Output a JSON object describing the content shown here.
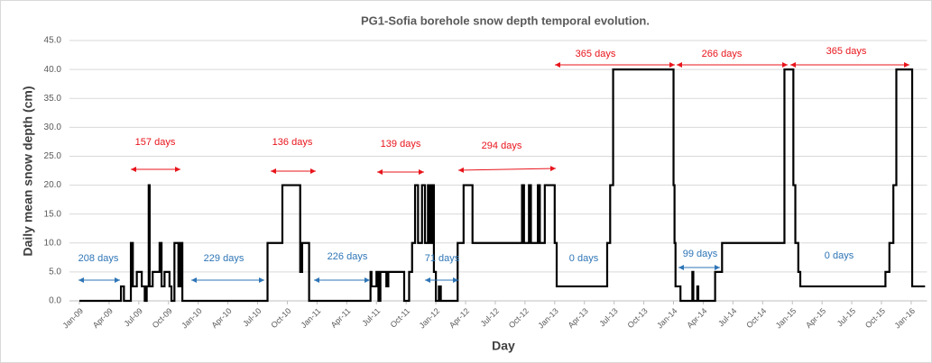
{
  "chart_data": {
    "type": "line",
    "title": "PG1-Sofia borehole snow depth temporal evolution.",
    "xlabel": "Day",
    "ylabel": "Daily mean snow depth (cm)",
    "xlim": [
      -1,
      85.6
    ],
    "ylim": [
      0,
      45
    ],
    "grid": true,
    "xticks": [
      {
        "value": 0,
        "label": "Jan-09"
      },
      {
        "value": 3,
        "label": "Apr-09"
      },
      {
        "value": 6,
        "label": "Jul-09"
      },
      {
        "value": 9,
        "label": "Oct-09"
      },
      {
        "value": 12,
        "label": "Jan-10"
      },
      {
        "value": 15,
        "label": "Apr-10"
      },
      {
        "value": 18,
        "label": "Jul-10"
      },
      {
        "value": 21,
        "label": "Oct-10"
      },
      {
        "value": 24,
        "label": "Jan-11"
      },
      {
        "value": 27,
        "label": "Apr-11"
      },
      {
        "value": 30,
        "label": "Jul-11"
      },
      {
        "value": 33,
        "label": "Oct-11"
      },
      {
        "value": 36,
        "label": "Jan-12"
      },
      {
        "value": 39,
        "label": "Apr-12"
      },
      {
        "value": 42,
        "label": "Jul-12"
      },
      {
        "value": 45,
        "label": "Oct-12"
      },
      {
        "value": 48,
        "label": "Jan-13"
      },
      {
        "value": 51,
        "label": "Apr-13"
      },
      {
        "value": 54,
        "label": "Jul-13"
      },
      {
        "value": 57,
        "label": "Oct-13"
      },
      {
        "value": 60,
        "label": "Jan-14"
      },
      {
        "value": 63,
        "label": "Apr-14"
      },
      {
        "value": 66,
        "label": "Jul-14"
      },
      {
        "value": 69,
        "label": "Oct-14"
      },
      {
        "value": 72,
        "label": "Jan-15"
      },
      {
        "value": 75,
        "label": "Apr-15"
      },
      {
        "value": 78,
        "label": "Jul-15"
      },
      {
        "value": 81,
        "label": "Oct-15"
      },
      {
        "value": 84,
        "label": "Jan-16"
      }
    ],
    "yticks": [
      {
        "value": 0,
        "label": "0.0"
      },
      {
        "value": 5,
        "label": "5.0"
      },
      {
        "value": 10,
        "label": "10.0"
      },
      {
        "value": 15,
        "label": "15.0"
      },
      {
        "value": 20,
        "label": "20.0"
      },
      {
        "value": 25,
        "label": "25.0"
      },
      {
        "value": 30,
        "label": "30.0"
      },
      {
        "value": 35,
        "label": "35.0"
      },
      {
        "value": 40,
        "label": "40.0"
      },
      {
        "value": 45,
        "label": "45.0"
      }
    ],
    "series": [
      {
        "color": "#000000",
        "x": [
          0,
          4.2,
          4.2,
          4.5,
          4.5,
          5.2,
          5.2,
          5.4,
          5.4,
          5.8,
          5.8,
          6.3,
          6.3,
          6.6,
          6.6,
          6.8,
          6.8,
          7.0,
          7.0,
          7.1,
          7.1,
          7.4,
          7.4,
          8.1,
          8.1,
          8.3,
          8.3,
          8.6,
          8.6,
          9.1,
          9.1,
          9.3,
          9.3,
          9.6,
          9.6,
          10.0,
          10.0,
          10.2,
          10.2,
          10.4,
          10.4,
          19.0,
          19.0,
          20.5,
          20.5,
          22.3,
          22.3,
          22.5,
          22.5,
          23.2,
          23.2,
          29.4,
          29.4,
          29.5,
          29.5,
          30.0,
          30.0,
          30.2,
          30.2,
          30.4,
          30.4,
          31.0,
          31.0,
          31.2,
          31.2,
          32.8,
          32.8,
          33.3,
          33.3,
          33.6,
          33.6,
          33.9,
          33.9,
          34.2,
          34.2,
          34.6,
          34.6,
          34.9,
          34.9,
          35.2,
          35.2,
          35.4,
          35.4,
          35.6,
          35.6,
          35.8,
          35.8,
          36.0,
          36.0,
          36.3,
          36.3,
          36.5,
          36.5,
          38.2,
          38.2,
          38.8,
          38.8,
          39.7,
          39.7,
          44.7,
          44.7,
          44.9,
          44.9,
          45.4,
          45.4,
          45.6,
          45.6,
          46.3,
          46.3,
          46.5,
          46.5,
          47.0,
          47.0,
          48.0,
          48.0,
          48.2,
          48.2,
          53.3,
          53.3,
          53.6,
          53.6,
          53.9,
          53.9,
          60.0,
          60.0,
          60.1,
          60.1,
          60.2,
          60.2,
          60.7,
          60.7,
          61.9,
          61.9,
          62.0,
          62.0,
          62.4,
          62.4,
          62.5,
          62.5,
          64.2,
          64.2,
          64.9,
          64.9,
          71.2,
          71.2,
          72.1,
          72.1,
          72.3,
          72.3,
          72.6,
          72.6,
          72.8,
          72.8,
          81.4,
          81.4,
          81.8,
          81.8,
          82.2,
          82.2,
          82.5,
          82.5,
          84.1,
          84.1,
          85.4
        ],
        "values": [
          0,
          0,
          2.5,
          2.5,
          0,
          0,
          10,
          10,
          2.5,
          2.5,
          5,
          5,
          2.5,
          2.5,
          0,
          0,
          2.5,
          2.5,
          20,
          20,
          2.5,
          2.5,
          5,
          5,
          10,
          10,
          2.5,
          2.5,
          5,
          5,
          2.5,
          2.5,
          0,
          0,
          10,
          10,
          2.5,
          2.5,
          10,
          10,
          0,
          0,
          10,
          10,
          20,
          20,
          5,
          5,
          10,
          10,
          0,
          0,
          5,
          5,
          2.5,
          2.5,
          5,
          5,
          0,
          0,
          5,
          5,
          2.5,
          2.5,
          5,
          5,
          0,
          0,
          5,
          5,
          10,
          10,
          20,
          20,
          10,
          10,
          20,
          20,
          10,
          10,
          20,
          20,
          10,
          10,
          20,
          20,
          5,
          5,
          0,
          0,
          2.5,
          2.5,
          0,
          0,
          10,
          10,
          20,
          20,
          10,
          10,
          20,
          20,
          10,
          10,
          20,
          20,
          10,
          10,
          20,
          20,
          10,
          10,
          20,
          20,
          10,
          10,
          2.5,
          2.5,
          10,
          10,
          20,
          20,
          40,
          40,
          20,
          20,
          10,
          10,
          2.5,
          2.5,
          0,
          0,
          5,
          5,
          0,
          0,
          2.5,
          2.5,
          0,
          0,
          5,
          5,
          10,
          10,
          40,
          40,
          20,
          20,
          10,
          10,
          5,
          5,
          2.5,
          2.5,
          5,
          5,
          10,
          10,
          20,
          20,
          40,
          40,
          2.5,
          2.5
        ]
      }
    ],
    "annotations": [
      {
        "text": "157 days",
        "color": "#e8141b"
      },
      {
        "text": "136 days",
        "color": "#e8141b"
      },
      {
        "text": "139 days",
        "color": "#e8141b"
      },
      {
        "text": "294 days",
        "color": "#e8141b"
      },
      {
        "text": "365 days",
        "color": "#e8141b"
      },
      {
        "text": "266 days",
        "color": "#e8141b"
      },
      {
        "text": "365 days",
        "color": "#e8141b"
      },
      {
        "text": "208 days",
        "color": "#2e75b6"
      },
      {
        "text": "229 days",
        "color": "#2e75b6"
      },
      {
        "text": "226 days",
        "color": "#2e75b6"
      },
      {
        "text": "71 days",
        "color": "#2e75b6"
      },
      {
        "text": "0 days",
        "color": "#2e75b6"
      },
      {
        "text": "99 days",
        "color": "#2e75b6"
      },
      {
        "text": "0 days",
        "color": "#2e75b6"
      }
    ]
  }
}
